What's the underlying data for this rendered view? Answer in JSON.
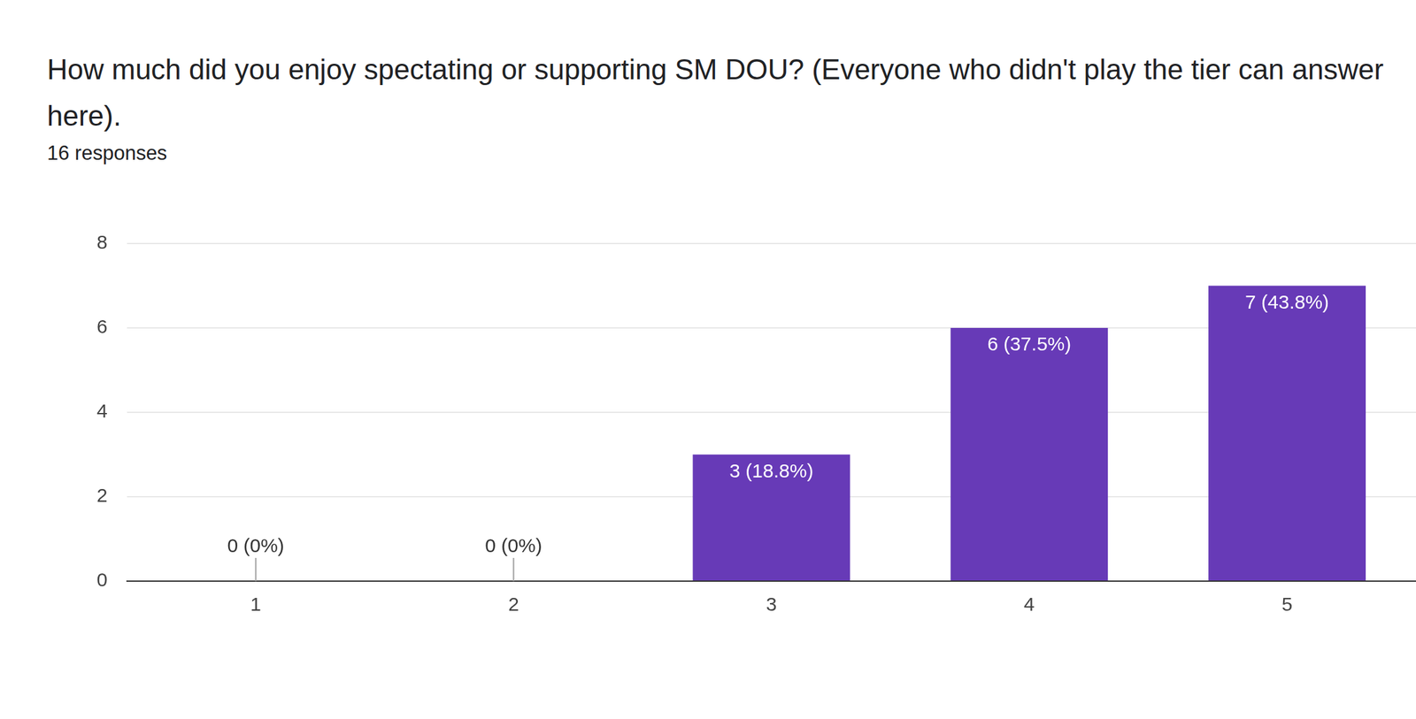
{
  "chart_data": {
    "type": "bar",
    "title": "How much did you enjoy spectating or supporting SM DOU? (Everyone who didn't play the tier can answer here).",
    "subtitle": "16 responses",
    "categories": [
      "1",
      "2",
      "3",
      "4",
      "5"
    ],
    "values": [
      0,
      0,
      3,
      6,
      7
    ],
    "value_labels": [
      "0 (0%)",
      "0 (0%)",
      "3 (18.8%)",
      "6 (37.5%)",
      "7 (43.8%)"
    ],
    "data_labels": true,
    "color": "#673ab7",
    "ylim": [
      0,
      8
    ],
    "yticks": [
      0,
      2,
      4,
      6,
      8
    ],
    "grid": true
  }
}
